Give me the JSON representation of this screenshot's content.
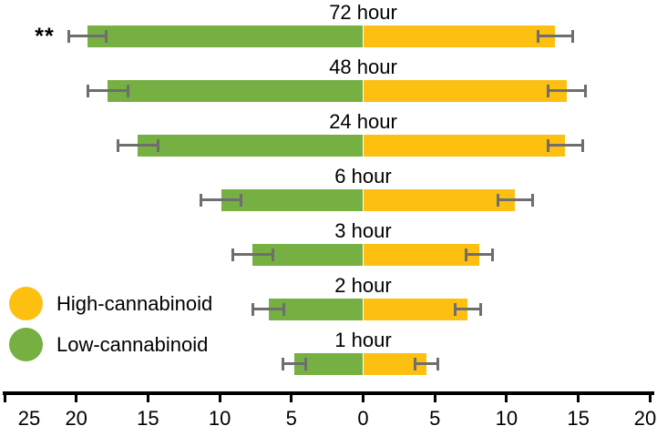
{
  "legend": {
    "entries": [
      {
        "label": "High-cannabinoid",
        "color": "#FDC010"
      },
      {
        "label": "Low-cannabinoid",
        "color": "#76B043"
      }
    ]
  },
  "chart_data": {
    "type": "bar",
    "subtype": "diverging-horizontal-butterfly",
    "title": "",
    "xlabel": "",
    "ylabel": "",
    "categories": [
      "72 hour",
      "48 hour",
      "24 hour",
      "6 hour",
      "3 hour",
      "2 hour",
      "1 hour"
    ],
    "series": [
      {
        "name": "Low-cannabinoid",
        "side": "left",
        "color": "#76B043",
        "values": [
          19.2,
          17.8,
          15.7,
          9.9,
          7.7,
          6.6,
          4.8
        ],
        "errors": [
          1.4,
          1.5,
          1.5,
          1.5,
          1.5,
          1.2,
          0.9
        ]
      },
      {
        "name": "High-cannabinoid",
        "side": "right",
        "color": "#FDC010",
        "values": [
          13.4,
          14.2,
          14.1,
          10.6,
          8.1,
          7.3,
          4.4
        ],
        "errors": [
          1.3,
          1.4,
          1.3,
          1.3,
          1.0,
          1.0,
          0.9
        ]
      }
    ],
    "significance": {
      "category": "72 hour",
      "marker": "**",
      "side": "left"
    },
    "axis": {
      "left_max": 25,
      "right_max": 20,
      "center": 0,
      "grid": false,
      "error_bar_color": "#6E6E6E",
      "axis_color": "#000000",
      "ticks": [
        {
          "x": -25,
          "label": "25"
        },
        {
          "x": -20,
          "label": "20"
        },
        {
          "x": -15,
          "label": "15"
        },
        {
          "x": -10,
          "label": "10"
        },
        {
          "x": -5,
          "label": "5"
        },
        {
          "x": 0,
          "label": "0"
        },
        {
          "x": 5,
          "label": "5"
        },
        {
          "x": 10,
          "label": "10"
        },
        {
          "x": 15,
          "label": "15"
        },
        {
          "x": 20,
          "label": "20"
        }
      ]
    },
    "legend_position": "middle-left"
  }
}
